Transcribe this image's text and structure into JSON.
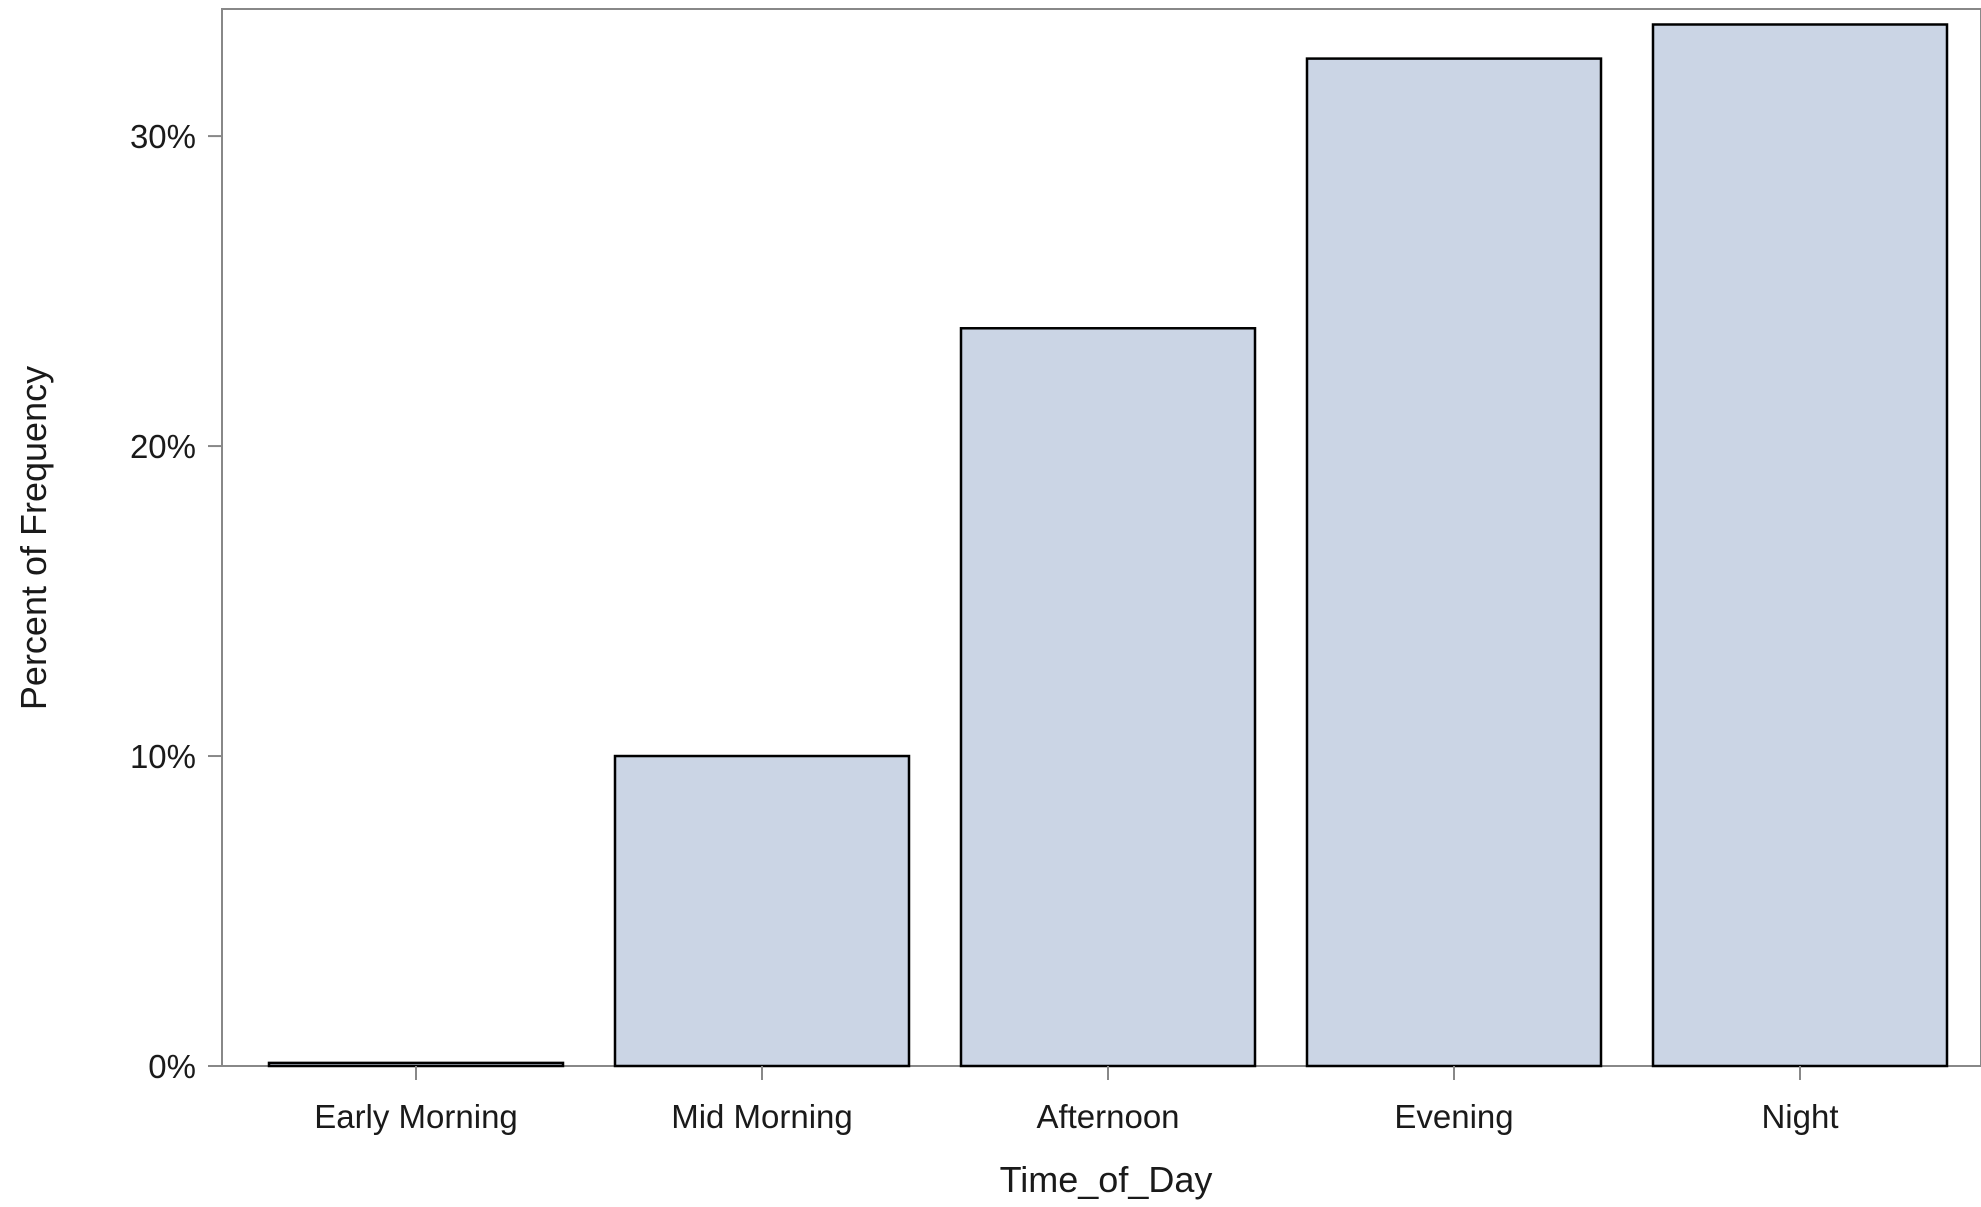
{
  "chart_data": {
    "type": "bar",
    "title": "",
    "xlabel": "Time_of_Day",
    "ylabel": "Percent of Frequency",
    "categories": [
      "Early Morning",
      "Mid Morning",
      "Afternoon",
      "Evening",
      "Night"
    ],
    "values": [
      0.1,
      10.0,
      23.8,
      32.5,
      33.6
    ],
    "value_unit": "%",
    "ylim": [
      0,
      34.1
    ],
    "yticks": [
      0,
      10,
      20,
      30
    ],
    "ytick_labels": [
      "0%",
      "10%",
      "20%",
      "30%"
    ],
    "grid": false,
    "legend": "none",
    "colors": {
      "bar_fill": "#cbd5e5",
      "bar_stroke": "#000000",
      "axis": "#888888"
    }
  }
}
